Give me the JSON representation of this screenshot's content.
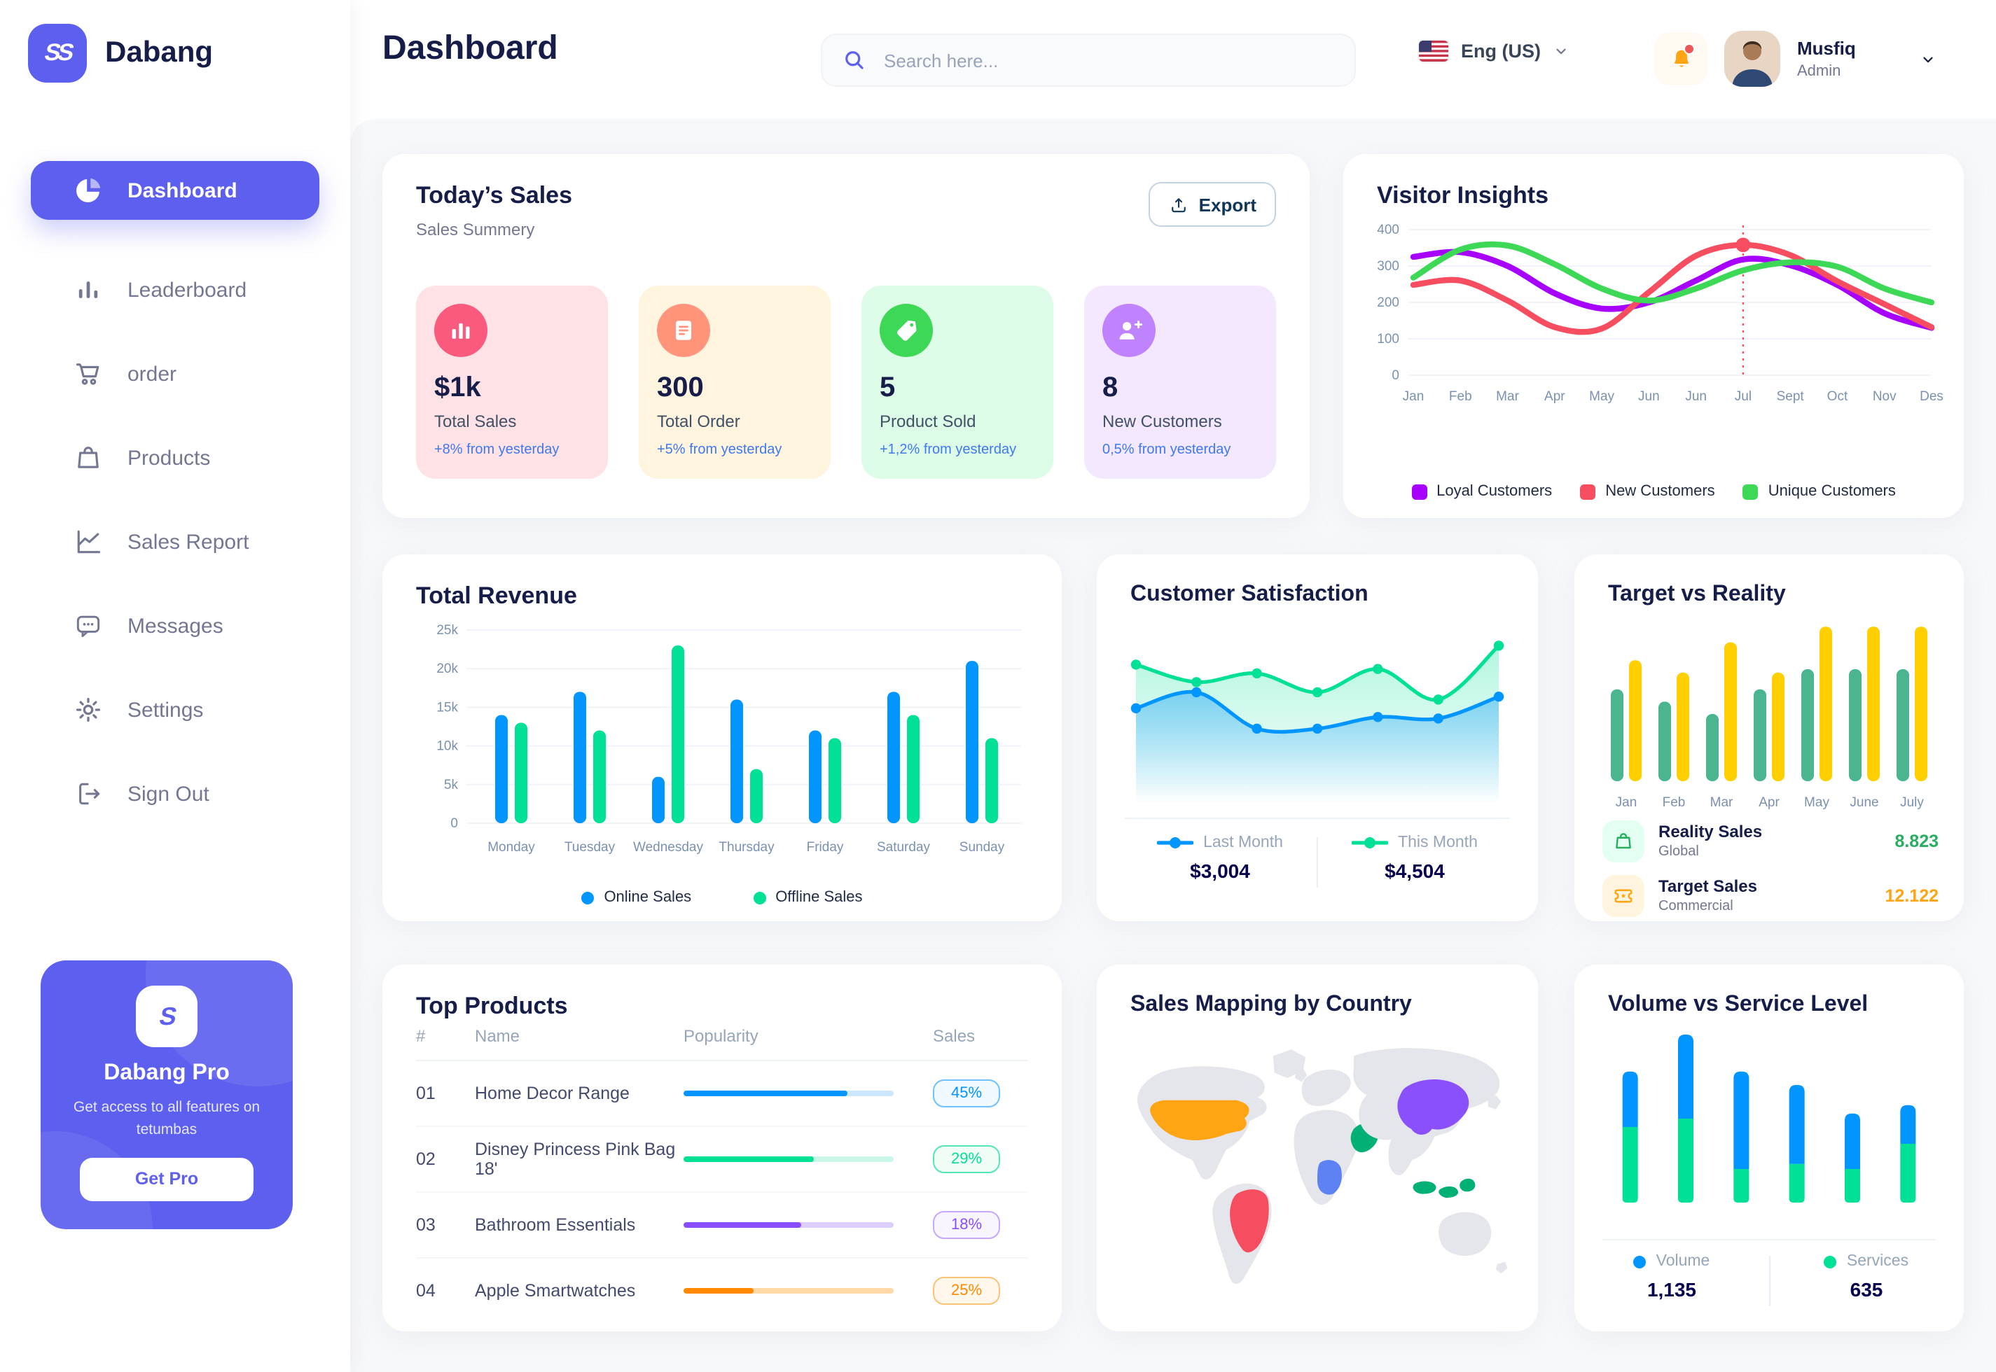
{
  "app": {
    "brand": "Dabang"
  },
  "sidebar": {
    "items": [
      {
        "label": "Dashboard",
        "icon": "pie-chart-icon",
        "active": true
      },
      {
        "label": "Leaderboard",
        "icon": "bar-chart-icon",
        "active": false
      },
      {
        "label": "order",
        "icon": "cart-icon",
        "active": false
      },
      {
        "label": "Products",
        "icon": "bag-icon",
        "active": false
      },
      {
        "label": "Sales Report",
        "icon": "line-chart-icon",
        "active": false
      },
      {
        "label": "Messages",
        "icon": "message-icon",
        "active": false
      },
      {
        "label": "Settings",
        "icon": "gear-icon",
        "active": false
      },
      {
        "label": "Sign Out",
        "icon": "sign-out-icon",
        "active": false
      }
    ],
    "promo": {
      "title": "Dabang Pro",
      "description": "Get access to all features on tetumbas",
      "cta": "Get Pro"
    }
  },
  "header": {
    "title": "Dashboard",
    "search_placeholder": "Search here...",
    "language": "Eng (US)",
    "user": {
      "name": "Musfiq",
      "role": "Admin"
    }
  },
  "cards": {
    "todays_sales": {
      "title": "Today’s Sales",
      "subtitle": "Sales Summery",
      "export_label": "Export",
      "stats": [
        {
          "value": "$1k",
          "label": "Total Sales",
          "delta": "+8% from yesterday",
          "bg": "#FFE2E5",
          "icon_bg": "#FA5A7D",
          "icon": "chart-bar-icon"
        },
        {
          "value": "300",
          "label": "Total Order",
          "delta": "+5% from yesterday",
          "bg": "#FFF4DE",
          "icon_bg": "#FF947A",
          "icon": "receipt-icon"
        },
        {
          "value": "5",
          "label": "Product Sold",
          "delta": "+1,2% from yesterday",
          "bg": "#DCFCE7",
          "icon_bg": "#3CD856",
          "icon": "tag-icon"
        },
        {
          "value": "8",
          "label": "New Customers",
          "delta": "0,5% from yesterday",
          "bg": "#F3E8FF",
          "icon_bg": "#BF83FF",
          "icon": "user-plus-icon"
        }
      ]
    }
  },
  "chart_data": [
    {
      "name": "visitor_insights",
      "type": "line",
      "title": "Visitor Insights",
      "x": [
        "Jan",
        "Feb",
        "Mar",
        "Apr",
        "May",
        "Jun",
        "Jun",
        "Jul",
        "Sept",
        "Oct",
        "Nov",
        "Des"
      ],
      "ylim": [
        0,
        400
      ],
      "yticks": [
        0,
        100,
        200,
        300,
        400
      ],
      "grid": true,
      "legend_position": "bottom",
      "series": [
        {
          "name": "Loyal Customers",
          "color": "#A700FF",
          "values": [
            325,
            338,
            300,
            225,
            183,
            200,
            260,
            318,
            302,
            248,
            170,
            130
          ]
        },
        {
          "name": "New Customers",
          "color": "#F64E60",
          "values": [
            248,
            260,
            205,
            132,
            128,
            228,
            328,
            358,
            330,
            258,
            195,
            132
          ]
        },
        {
          "name": "Unique Customers",
          "color": "#3CD856",
          "values": [
            268,
            345,
            356,
            305,
            238,
            205,
            238,
            288,
            310,
            298,
            238,
            200
          ]
        }
      ],
      "annotation": {
        "x_index": 7,
        "x_label": "Jul",
        "series": "New Customers",
        "value": 358
      }
    },
    {
      "name": "total_revenue",
      "type": "bar",
      "title": "Total Revenue",
      "categories": [
        "Monday",
        "Tuesday",
        "Wednesday",
        "Thursday",
        "Friday",
        "Saturday",
        "Sunday"
      ],
      "ylim": [
        0,
        25000
      ],
      "yticks_labels": [
        "0",
        "5k",
        "10k",
        "15k",
        "20k",
        "25k"
      ],
      "grid": true,
      "legend_position": "bottom",
      "series": [
        {
          "name": "Online Sales",
          "color": "#0095FF",
          "values": [
            14000,
            17000,
            6000,
            16000,
            12000,
            17000,
            21000
          ]
        },
        {
          "name": "Offline Sales",
          "color": "#00E096",
          "values": [
            13000,
            12000,
            23000,
            7000,
            11000,
            14000,
            11000
          ]
        }
      ]
    },
    {
      "name": "customer_satisfaction",
      "type": "area",
      "title": "Customer Satisfaction",
      "x": [
        1,
        2,
        3,
        4,
        5,
        6,
        7
      ],
      "ylim": [
        0,
        100
      ],
      "legend_position": "bottom",
      "series": [
        {
          "name": "Last Month",
          "color": "#0095FF",
          "total": "$3,004",
          "values": [
            52,
            63,
            38,
            38,
            46,
            45,
            60
          ]
        },
        {
          "name": "This Month",
          "color": "#00E096",
          "total": "$4,504",
          "values": [
            82,
            70,
            76,
            63,
            79,
            58,
            95
          ]
        }
      ]
    },
    {
      "name": "target_vs_reality",
      "type": "bar",
      "title": "Target vs Reality",
      "categories": [
        "Jan",
        "Feb",
        "Mar",
        "Apr",
        "May",
        "June",
        "July"
      ],
      "ylim": [
        0,
        14
      ],
      "series": [
        {
          "name": "Reality Sales",
          "subtitle": "Global",
          "color": "#4AB58E",
          "legend_color": "#27AE60",
          "legend_bg": "#E2FFF1",
          "legend_value": "8.823",
          "icon": "shopping-bag-icon",
          "values": [
            8.2,
            7.1,
            6.0,
            8.2,
            10,
            10,
            10
          ]
        },
        {
          "name": "Target Sales",
          "subtitle": "Commercial",
          "color": "#FFCF00",
          "legend_color": "#FFA412",
          "legend_bg": "#FFF4DE",
          "legend_value": "12.122",
          "icon": "ticket-icon",
          "values": [
            10.8,
            9.7,
            12.4,
            9.7,
            13.8,
            13.8,
            13.8
          ]
        }
      ]
    },
    {
      "name": "top_products",
      "type": "table",
      "title": "Top Products",
      "columns": [
        "#",
        "Name",
        "Popularity",
        "Sales"
      ],
      "rows": [
        {
          "id": "01",
          "name": "Home Decor Range",
          "popularity": 78,
          "sales": "45%",
          "color": "#0095FF",
          "track": "#CDE7FF",
          "badge_bg": "#F0F9FF",
          "badge_border": "#6FC2FF"
        },
        {
          "id": "02",
          "name": "Disney Princess Pink Bag 18'",
          "popularity": 62,
          "sales": "29%",
          "color": "#00E096",
          "track": "#CBF5E6",
          "badge_bg": "#F0FDF4",
          "badge_border": "#52E6B8"
        },
        {
          "id": "03",
          "name": "Bathroom Essentials",
          "popularity": 56,
          "sales": "18%",
          "color": "#884DFF",
          "track": "#DCCFFF",
          "badge_bg": "#F9F5FF",
          "badge_border": "#C5A8FF"
        },
        {
          "id": "04",
          "name": "Apple Smartwatches",
          "popularity": 33,
          "sales": "25%",
          "color": "#FF8900",
          "track": "#FFD9A6",
          "badge_bg": "#FFF7EC",
          "badge_border": "#FFC173"
        }
      ]
    },
    {
      "name": "sales_mapping",
      "type": "map",
      "title": "Sales Mapping by Country",
      "base_color": "#E4E6EC",
      "countries": [
        {
          "name": "United States",
          "color": "#FFA412"
        },
        {
          "name": "Brazil",
          "color": "#F64E60"
        },
        {
          "name": "Saudi Arabia",
          "color": "#00B074"
        },
        {
          "name": "DR Congo",
          "color": "#5E81F4"
        },
        {
          "name": "China",
          "color": "#8950FC"
        },
        {
          "name": "Indonesia",
          "color": "#00B074"
        }
      ]
    },
    {
      "name": "volume_vs_service",
      "type": "bar",
      "subtype": "stacked",
      "title": "Volume vs Service Level",
      "categories": [
        "1",
        "2",
        "3",
        "4",
        "5",
        "6"
      ],
      "legend_position": "bottom",
      "series": [
        {
          "name": "Volume",
          "color": "#0095FF",
          "total": "1,135",
          "values": [
            33,
            50,
            58,
            47,
            33,
            23
          ]
        },
        {
          "name": "Services",
          "color": "#00E096",
          "total": "635",
          "values": [
            45,
            50,
            20,
            23,
            20,
            35
          ]
        }
      ]
    }
  ]
}
